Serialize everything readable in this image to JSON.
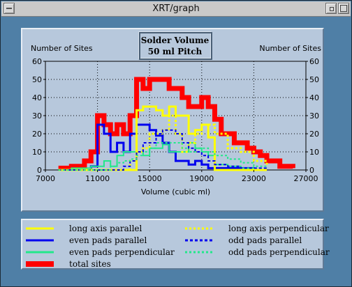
{
  "window": {
    "title": "XRT/graph"
  },
  "chart_data": {
    "type": "line",
    "title": "Solder Volume\n50 ml Pitch",
    "title_lines": [
      "Solder Volume",
      "50 ml Pitch"
    ],
    "xlabel": "Volume (cubic ml)",
    "ylabel_left": "Number of Sites",
    "ylabel_right": "Number of Sites",
    "xlim": [
      7000,
      27000
    ],
    "ylim": [
      0,
      60
    ],
    "xticks": [
      7000,
      11000,
      15000,
      19000,
      23000,
      27000
    ],
    "xtick_labels": [
      "7000",
      "11000",
      "15000",
      "19000",
      "23000",
      "27000"
    ],
    "yticks": [
      0,
      10,
      20,
      30,
      40,
      50,
      60
    ],
    "ytick_labels": [
      "0",
      "10",
      "20",
      "30",
      "40",
      "50",
      "60"
    ],
    "grid": "dotted",
    "legend_placement": "bottom",
    "series": [
      {
        "name": "long axis parallel",
        "color": "#ffff00",
        "dash": "solid",
        "width": 3,
        "x": [
          8000,
          9000,
          10000,
          10500,
          11000,
          11500,
          12000,
          12500,
          13000,
          13500,
          14000,
          14500,
          15000,
          15500,
          16000,
          16500,
          17000,
          17500,
          18000,
          18500,
          19000,
          19500,
          20000,
          21000,
          22000,
          23000,
          24000
        ],
        "y": [
          0,
          0,
          0,
          0,
          0,
          0,
          0,
          0,
          0,
          0,
          33,
          35,
          35,
          33,
          30,
          35,
          30,
          30,
          20,
          22,
          25,
          18,
          0,
          0,
          0,
          0,
          0
        ]
      },
      {
        "name": "even pads parallel",
        "color": "#0000ee",
        "dash": "solid",
        "width": 3,
        "x": [
          8000,
          9000,
          10000,
          10500,
          11000,
          11500,
          12000,
          12500,
          13000,
          13500,
          14000,
          14500,
          15000,
          15500,
          16000,
          16500,
          17000,
          17500,
          18000,
          18500,
          19000,
          19500,
          20000,
          21000,
          22000,
          23000,
          24000
        ],
        "y": [
          0,
          0,
          0,
          2,
          25,
          20,
          10,
          15,
          10,
          20,
          25,
          25,
          22,
          19,
          15,
          10,
          5,
          5,
          3,
          5,
          3,
          1,
          1,
          1,
          1,
          0,
          0
        ]
      },
      {
        "name": "even pads perpendicular",
        "color": "#22e88a",
        "dash": "solid",
        "width": 2,
        "x": [
          8000,
          9000,
          10000,
          10500,
          11000,
          11500,
          12000,
          12500,
          13000,
          13500,
          14000,
          14500,
          15000,
          15500,
          16000,
          16500,
          17000,
          17500,
          18000,
          18500,
          19000,
          19500,
          20000,
          21000,
          22000,
          23000,
          24000
        ],
        "y": [
          0,
          1,
          1,
          2,
          2,
          5,
          2,
          8,
          10,
          10,
          10,
          8,
          12,
          12,
          14,
          10,
          10,
          10,
          15,
          12,
          10,
          8,
          3,
          2,
          1,
          0,
          0
        ]
      },
      {
        "name": "total sites",
        "color": "#ff0000",
        "dash": "solid",
        "width": 7,
        "x": [
          8000,
          9000,
          10000,
          10500,
          11000,
          11500,
          12000,
          12500,
          13000,
          13500,
          14000,
          14500,
          15000,
          15500,
          16000,
          16500,
          17000,
          17500,
          18000,
          18500,
          19000,
          19500,
          20000,
          20500,
          21000,
          21500,
          22000,
          22500,
          23000,
          23500,
          24000,
          25000,
          26000
        ],
        "y": [
          1,
          2,
          5,
          10,
          30,
          25,
          20,
          25,
          20,
          30,
          50,
          45,
          50,
          50,
          50,
          45,
          45,
          40,
          35,
          35,
          40,
          35,
          28,
          20,
          20,
          15,
          15,
          12,
          10,
          8,
          5,
          2,
          1
        ]
      },
      {
        "name": "long axis perpendicular",
        "color": "#ffff00",
        "dash": "dotted",
        "width": 3,
        "x": [
          8000,
          9000,
          10000,
          10500,
          11000,
          11500,
          12000,
          12500,
          13000,
          13500,
          14000,
          14500,
          15000,
          15500,
          16000,
          16500,
          17000,
          17500,
          18000,
          18500,
          19000,
          19500,
          20000,
          21000,
          22000,
          23000,
          24000
        ],
        "y": [
          0,
          0,
          0,
          0,
          0,
          0,
          0,
          0,
          0,
          5,
          10,
          12,
          20,
          20,
          22,
          30,
          20,
          10,
          15,
          20,
          25,
          25,
          20,
          12,
          10,
          5,
          3
        ]
      },
      {
        "name": "odd pads parallel",
        "color": "#0000ee",
        "dash": "dashed",
        "width": 2,
        "x": [
          8000,
          9000,
          10000,
          10500,
          11000,
          11500,
          12000,
          12500,
          13000,
          13500,
          14000,
          14500,
          15000,
          15500,
          16000,
          16500,
          17000,
          17500,
          18000,
          18500,
          19000,
          19500,
          20000,
          21000,
          22000,
          23000,
          24000
        ],
        "y": [
          0,
          0,
          0,
          0,
          0,
          0,
          0,
          0,
          2,
          5,
          10,
          15,
          15,
          20,
          22,
          22,
          20,
          15,
          12,
          10,
          8,
          5,
          3,
          2,
          1,
          1,
          0
        ]
      },
      {
        "name": "odd pads perpendicular",
        "color": "#22e88a",
        "dash": "dotted",
        "width": 2,
        "x": [
          8000,
          9000,
          10000,
          10500,
          11000,
          11500,
          12000,
          12500,
          13000,
          13500,
          14000,
          14500,
          15000,
          15500,
          16000,
          16500,
          17000,
          17500,
          18000,
          18500,
          19000,
          19500,
          20000,
          21000,
          22000,
          23000,
          24000
        ],
        "y": [
          0,
          0,
          0,
          0,
          0,
          0,
          2,
          4,
          5,
          6,
          8,
          10,
          12,
          15,
          15,
          15,
          15,
          12,
          10,
          12,
          12,
          10,
          8,
          6,
          4,
          2,
          1
        ]
      }
    ]
  }
}
